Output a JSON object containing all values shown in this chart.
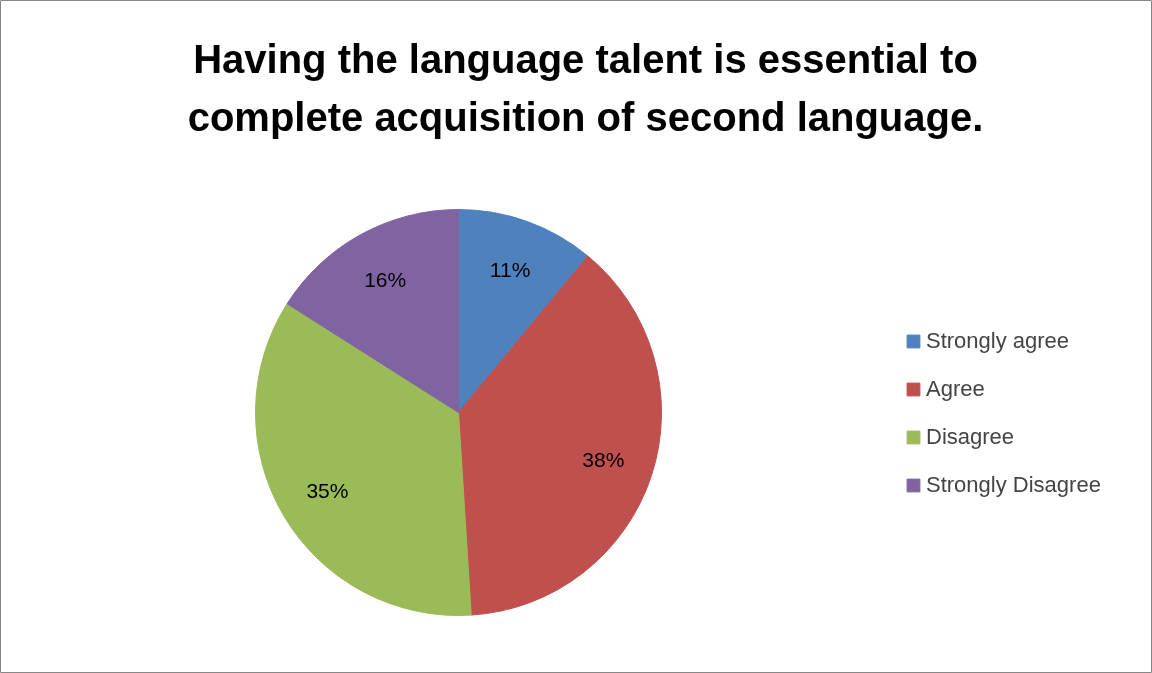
{
  "chart_data": {
    "type": "pie",
    "title": "Having the language talent is essential to complete acquisition of second language.",
    "categories": [
      "Strongly agree",
      "Agree",
      "Disagree",
      "Strongly Disagree"
    ],
    "values": [
      11,
      38,
      35,
      16
    ],
    "colors": [
      "#4f81bd",
      "#c0504d",
      "#9bbb59",
      "#8064a2"
    ],
    "value_labels": [
      "11%",
      "38%",
      "35%",
      "16%"
    ],
    "legend": "right"
  }
}
